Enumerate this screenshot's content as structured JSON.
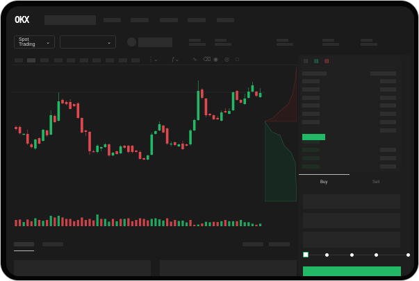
{
  "header": {
    "logo": "OKX",
    "market_dropdown": {
      "label": "Spot Trading",
      "icon": "chevron-down-icon"
    },
    "pair_dropdown": {
      "icon": "chevron-down-icon"
    }
  },
  "chart_toolbar": {
    "icons": [
      "line-icon",
      "ruler-icon",
      "camera-icon",
      "settings-icon",
      "fullscreen-icon"
    ]
  },
  "orderbook": {
    "view_icons": [
      "orderbook-both-icon",
      "orderbook-bids-icon",
      "orderbook-asks-icon"
    ]
  },
  "trade_panel": {
    "tabs": [
      {
        "label": "Buy",
        "active": true
      },
      {
        "label": "Sell",
        "active": false
      }
    ],
    "slider_percent": 0
  },
  "colors": {
    "up": "#22b866",
    "down": "#e0484f",
    "background": "#1b1b1b",
    "accent": "#22b866"
  },
  "chart_data": {
    "type": "candlestick",
    "ohlc": [
      [
        68,
        70,
        63,
        65
      ],
      [
        68,
        70,
        57,
        59
      ],
      [
        57,
        59,
        56,
        58
      ],
      [
        58,
        64,
        42,
        44
      ],
      [
        43,
        45,
        37,
        39
      ],
      [
        37,
        51,
        35,
        50
      ],
      [
        52,
        53,
        43,
        44
      ],
      [
        48,
        65,
        47,
        64
      ],
      [
        63,
        64,
        54,
        56
      ],
      [
        57,
        92,
        56,
        85
      ],
      [
        84,
        86,
        74,
        75
      ],
      [
        77,
        118,
        76,
        105
      ],
      [
        107,
        109,
        101,
        102
      ],
      [
        104,
        106,
        99,
        101
      ],
      [
        104,
        108,
        93,
        94
      ],
      [
        101,
        102,
        97,
        98
      ],
      [
        102,
        104,
        80,
        81
      ],
      [
        81,
        82,
        59,
        60
      ],
      [
        63,
        64,
        55,
        61
      ],
      [
        61,
        62,
        28,
        33
      ],
      [
        33,
        35,
        31,
        32
      ],
      [
        32,
        43,
        30,
        41
      ],
      [
        37,
        40,
        33,
        39
      ],
      [
        39,
        45,
        38,
        43
      ],
      [
        43,
        44,
        25,
        27
      ],
      [
        27,
        32,
        26,
        31
      ],
      [
        33,
        34,
        28,
        29
      ],
      [
        30,
        42,
        29,
        40
      ],
      [
        41,
        42,
        37,
        38
      ],
      [
        41,
        42,
        30,
        32
      ],
      [
        41,
        42,
        30,
        32
      ],
      [
        34,
        35,
        31,
        32
      ],
      [
        32,
        34,
        21,
        22
      ],
      [
        23,
        24,
        20,
        21
      ],
      [
        21,
        28,
        20,
        27
      ],
      [
        28,
        60,
        27,
        57
      ],
      [
        58,
        63,
        57,
        62
      ],
      [
        63,
        76,
        62,
        72
      ],
      [
        70,
        71,
        59,
        60
      ],
      [
        66,
        67,
        42,
        44
      ],
      [
        43,
        47,
        40,
        44
      ],
      [
        46,
        47,
        41,
        42
      ],
      [
        40,
        44,
        39,
        43
      ],
      [
        44,
        48,
        35,
        36
      ],
      [
        43,
        44,
        40,
        41
      ],
      [
        43,
        65,
        41,
        63
      ],
      [
        63,
        80,
        62,
        78
      ],
      [
        78,
        135,
        77,
        120
      ],
      [
        122,
        124,
        108,
        110
      ],
      [
        109,
        110,
        82,
        85
      ],
      [
        87,
        88,
        83,
        85
      ],
      [
        85,
        86,
        78,
        79
      ],
      [
        81,
        84,
        78,
        79
      ],
      [
        77,
        92,
        76,
        89
      ],
      [
        91,
        95,
        88,
        89
      ],
      [
        87,
        95,
        86,
        91
      ],
      [
        92,
        119,
        91,
        118
      ],
      [
        120,
        121,
        106,
        107
      ],
      [
        107,
        108,
        102,
        103
      ],
      [
        101,
        116,
        100,
        109
      ],
      [
        110,
        125,
        109,
        119
      ],
      [
        119,
        133,
        118,
        128
      ],
      [
        119,
        120,
        111,
        113
      ],
      [
        111,
        124,
        110,
        117
      ]
    ],
    "volume": [
      {
        "v": 30,
        "up": false
      },
      {
        "v": 32,
        "up": false
      },
      {
        "v": 20,
        "up": true
      },
      {
        "v": 32,
        "up": false
      },
      {
        "v": 24,
        "up": false
      },
      {
        "v": 38,
        "up": true
      },
      {
        "v": 30,
        "up": false
      },
      {
        "v": 26,
        "up": true
      },
      {
        "v": 30,
        "up": false
      },
      {
        "v": 50,
        "up": true
      },
      {
        "v": 42,
        "up": false
      },
      {
        "v": 50,
        "up": true
      },
      {
        "v": 42,
        "up": false
      },
      {
        "v": 35,
        "up": false
      },
      {
        "v": 35,
        "up": false
      },
      {
        "v": 24,
        "up": false
      },
      {
        "v": 30,
        "up": false
      },
      {
        "v": 42,
        "up": false
      },
      {
        "v": 30,
        "up": false
      },
      {
        "v": 35,
        "up": false
      },
      {
        "v": 28,
        "up": false
      },
      {
        "v": 56,
        "up": true
      },
      {
        "v": 35,
        "up": false
      },
      {
        "v": 35,
        "up": true
      },
      {
        "v": 22,
        "up": true
      },
      {
        "v": 35,
        "up": false
      },
      {
        "v": 24,
        "up": true
      },
      {
        "v": 35,
        "up": false
      },
      {
        "v": 35,
        "up": true
      },
      {
        "v": 38,
        "up": false
      },
      {
        "v": 24,
        "up": false
      },
      {
        "v": 30,
        "up": false
      },
      {
        "v": 38,
        "up": false
      },
      {
        "v": 35,
        "up": false
      },
      {
        "v": 28,
        "up": false
      },
      {
        "v": 35,
        "up": true
      },
      {
        "v": 38,
        "up": true
      },
      {
        "v": 33,
        "up": true
      },
      {
        "v": 27,
        "up": true
      },
      {
        "v": 38,
        "up": false
      },
      {
        "v": 22,
        "up": false
      },
      {
        "v": 30,
        "up": false
      },
      {
        "v": 25,
        "up": true
      },
      {
        "v": 27,
        "up": true
      },
      {
        "v": 18,
        "up": true
      },
      {
        "v": 30,
        "up": false
      },
      {
        "v": 7,
        "up": false
      },
      {
        "v": 8,
        "up": true
      },
      {
        "v": 13,
        "up": false
      },
      {
        "v": 21,
        "up": true
      },
      {
        "v": 19,
        "up": true
      },
      {
        "v": 21,
        "up": false
      },
      {
        "v": 20,
        "up": false
      },
      {
        "v": 24,
        "up": true
      },
      {
        "v": 30,
        "up": false
      },
      {
        "v": 24,
        "up": true
      },
      {
        "v": 24,
        "up": true
      },
      {
        "v": 24,
        "up": false
      },
      {
        "v": 30,
        "up": true
      },
      {
        "v": 19,
        "up": true
      },
      {
        "v": 19,
        "up": true
      },
      {
        "v": 12,
        "up": true
      },
      {
        "v": 7,
        "up": false
      },
      {
        "v": 12,
        "up": true
      }
    ]
  }
}
